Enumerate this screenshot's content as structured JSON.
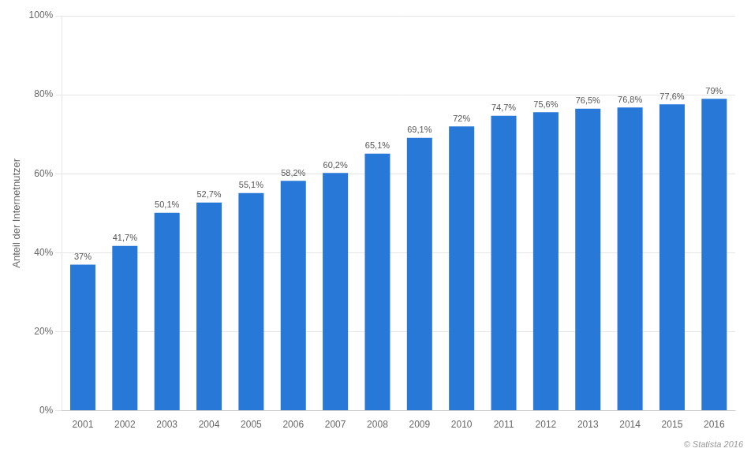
{
  "chart_data": {
    "type": "bar",
    "ylabel": "Anteil der Internetnutzer",
    "categories": [
      "2001",
      "2002",
      "2003",
      "2004",
      "2005",
      "2006",
      "2007",
      "2008",
      "2009",
      "2010",
      "2011",
      "2012",
      "2013",
      "2014",
      "2015",
      "2016"
    ],
    "values": [
      0.37,
      0.417,
      0.501,
      0.527,
      0.551,
      0.582,
      0.602,
      0.651,
      0.691,
      0.72,
      0.747,
      0.756,
      0.765,
      0.768,
      0.776,
      0.79
    ],
    "value_labels": [
      "37%",
      "41,7%",
      "50,1%",
      "52,7%",
      "55,1%",
      "58,2%",
      "60,2%",
      "65,1%",
      "69,1%",
      "72%",
      "74,7%",
      "75,6%",
      "76,5%",
      "76,8%",
      "77,6%",
      "79%"
    ],
    "data_labels": true,
    "color": "#2878d8",
    "ylim": [
      0.0,
      1.0
    ],
    "yticks": [
      {
        "value": 0.0,
        "label": "0%"
      },
      {
        "value": 0.2,
        "label": "20%"
      },
      {
        "value": 0.4,
        "label": "40%"
      },
      {
        "value": 0.6,
        "label": "60%"
      },
      {
        "value": 0.8,
        "label": "80%"
      },
      {
        "value": 1.0,
        "label": "100%"
      }
    ],
    "grid": true,
    "annotations": [
      "© Statista 2016"
    ]
  }
}
